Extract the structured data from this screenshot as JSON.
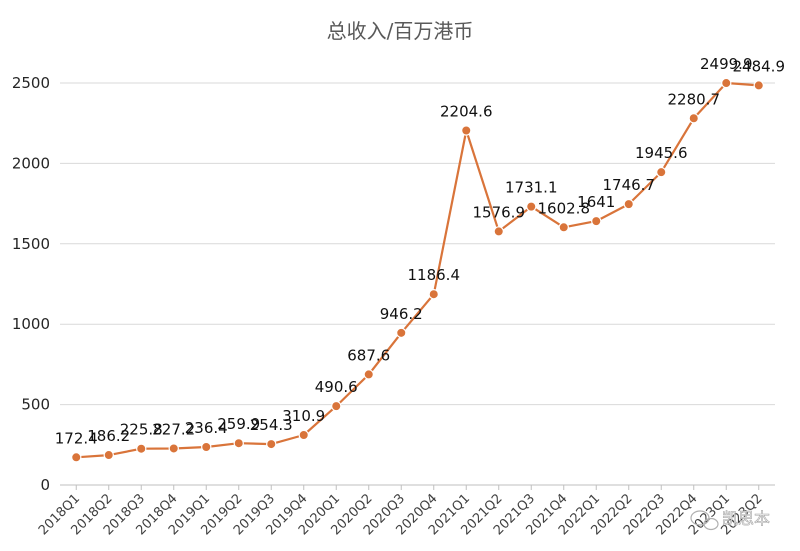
{
  "chart_data": {
    "type": "line",
    "title": "总收入/百万港币",
    "xlabel": "",
    "ylabel": "",
    "ylim": [
      0,
      2500
    ],
    "yticks": [
      0,
      500,
      1000,
      1500,
      2000,
      2500
    ],
    "grid": true,
    "legend": "none",
    "colors": {
      "line": "#d9743a",
      "marker": "#d9743a"
    },
    "categories": [
      "2018Q1",
      "2018Q2",
      "2018Q3",
      "2018Q4",
      "2019Q1",
      "2019Q2",
      "2019Q3",
      "2019Q4",
      "2020Q1",
      "2020Q2",
      "2020Q3",
      "2020Q4",
      "2021Q1",
      "2021Q2",
      "2021Q3",
      "2021Q4",
      "2022Q1",
      "2022Q2",
      "2022Q3",
      "2022Q4",
      "2023Q1",
      "2023Q2"
    ],
    "values": [
      172.4,
      186.2,
      225.8,
      227.2,
      236.4,
      259.9,
      254.3,
      310.9,
      490.6,
      687.6,
      946.2,
      1186.4,
      2204.6,
      1576.9,
      1731.1,
      1602.8,
      1641,
      1746.7,
      1945.6,
      2280.7,
      2499.9,
      2484.9
    ],
    "data_labels": [
      "172.4",
      "186.2",
      "225.8",
      "227.2",
      "236.4",
      "259.9",
      "254.3",
      "310.9",
      "490.6",
      "687.6",
      "946.2",
      "1186.4",
      "2204.6",
      "1576.9",
      "1731.1",
      "1602.8",
      "1641",
      "1746.7",
      "1945.6",
      "2280.7",
      "2499.9",
      "2484.9"
    ]
  },
  "watermark": {
    "text": "凯思本",
    "icon": "wechat-icon"
  }
}
